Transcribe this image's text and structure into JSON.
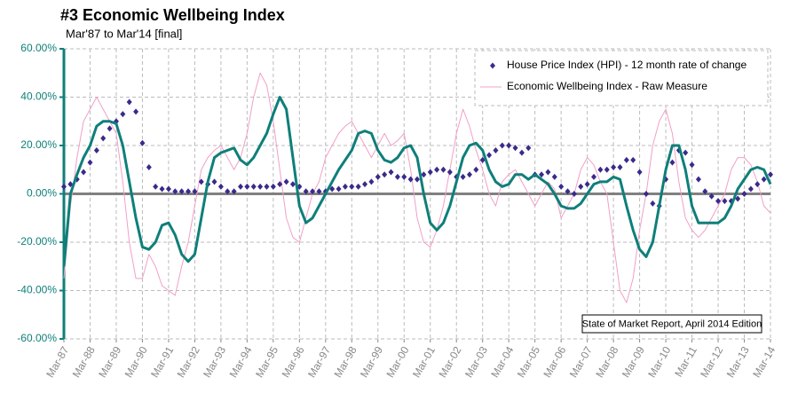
{
  "chart_data": {
    "type": "line",
    "title": "#3 Economic Wellbeing Index",
    "subtitle": "Mar'87 to Mar'14 [final]",
    "annotation": "State of Market Report, April 2014 Edition",
    "categories": [
      "Mar-87",
      null,
      null,
      null,
      "Mar-88",
      null,
      null,
      null,
      "Mar-89",
      null,
      null,
      null,
      "Mar-90",
      null,
      null,
      null,
      "Mar-91",
      null,
      null,
      null,
      "Mar-92",
      null,
      null,
      null,
      "Mar-93",
      null,
      null,
      null,
      "Mar-94",
      null,
      null,
      null,
      "Mar-95",
      null,
      null,
      null,
      "Mar-96",
      null,
      null,
      null,
      "Mar-97",
      null,
      null,
      null,
      "Mar-98",
      null,
      null,
      null,
      "Mar-99",
      null,
      null,
      null,
      "Mar-00",
      null,
      null,
      null,
      "Mar-01",
      null,
      null,
      null,
      "Mar-02",
      null,
      null,
      null,
      "Mar-03",
      null,
      null,
      null,
      "Mar-04",
      null,
      null,
      null,
      "Mar-05",
      null,
      null,
      null,
      "Mar-06",
      null,
      null,
      null,
      "Mar-07",
      null,
      null,
      null,
      "Mar-08",
      null,
      null,
      null,
      "Mar-09",
      null,
      null,
      null,
      "Mar-10",
      null,
      null,
      null,
      "Mar-11",
      null,
      null,
      null,
      "Mar-12",
      null,
      null,
      null,
      "Mar-13",
      null,
      null,
      null,
      "Mar-14"
    ],
    "series": [
      {
        "name": "House Price Index (HPI) - 12 month rate of change",
        "type": "scatter",
        "color": "#3a2a8a",
        "values": [
          3,
          4,
          6,
          9,
          13,
          18,
          23,
          27,
          30,
          33,
          38,
          34,
          21,
          11,
          3,
          2,
          2,
          1,
          1,
          1,
          1,
          5,
          4,
          5,
          3,
          1,
          1,
          3,
          3,
          3,
          3,
          3,
          3,
          4,
          5,
          4,
          3,
          1,
          1,
          1,
          1,
          2,
          2,
          3,
          3,
          3,
          4,
          5,
          7,
          8,
          9,
          7,
          7,
          6,
          6,
          8,
          9,
          10,
          10,
          9,
          7,
          7,
          8,
          10,
          14,
          16,
          18,
          20,
          20,
          19,
          17,
          19,
          8,
          8,
          9,
          7,
          3,
          1,
          0,
          3,
          4,
          7,
          10,
          10,
          11,
          11,
          14,
          14,
          9,
          0,
          -4,
          -5,
          6,
          13,
          18,
          17,
          12,
          6,
          1,
          -1,
          -3,
          -3,
          -3,
          -2,
          0,
          2,
          4,
          6,
          8
        ]
      },
      {
        "name": "Economic Wellbeing Index - Raw Measure",
        "type": "line",
        "line_width": 1,
        "color": "#f0a0c8",
        "values": [
          -35,
          -5,
          15,
          30,
          35,
          40,
          35,
          30,
          25,
          5,
          -20,
          -35,
          -35,
          -25,
          -30,
          -38,
          -40,
          -42,
          -30,
          -20,
          -5,
          10,
          15,
          18,
          20,
          15,
          10,
          15,
          25,
          40,
          50,
          45,
          30,
          10,
          -10,
          -18,
          -20,
          -10,
          0,
          5,
          15,
          20,
          25,
          28,
          30,
          25,
          20,
          15,
          20,
          25,
          20,
          22,
          25,
          10,
          -10,
          -20,
          -22,
          -15,
          -5,
          10,
          25,
          35,
          28,
          18,
          10,
          0,
          -5,
          5,
          8,
          10,
          5,
          0,
          -5,
          0,
          5,
          2,
          -10,
          -5,
          0,
          10,
          15,
          12,
          5,
          0,
          -20,
          -40,
          -45,
          -35,
          -15,
          0,
          20,
          30,
          35,
          25,
          5,
          -10,
          -15,
          -18,
          -15,
          -10,
          -5,
          0,
          10,
          15,
          15,
          12,
          5,
          -5,
          -8
        ]
      },
      {
        "type": "line",
        "line_width": 3,
        "color": "#0e7f7a",
        "values": [
          -30,
          0,
          8,
          15,
          20,
          28,
          30,
          30,
          29,
          20,
          5,
          -10,
          -22,
          -23,
          -20,
          -13,
          -12,
          -17,
          -25,
          -28,
          -25,
          -10,
          5,
          15,
          17,
          18,
          19,
          14,
          12,
          15,
          20,
          25,
          33,
          40,
          35,
          15,
          -5,
          -12,
          -10,
          -5,
          0,
          5,
          10,
          14,
          18,
          25,
          26,
          25,
          18,
          14,
          13,
          15,
          19,
          20,
          15,
          0,
          -12,
          -15,
          -12,
          -5,
          5,
          15,
          20,
          21,
          18,
          10,
          5,
          3,
          4,
          8,
          8,
          6,
          8,
          6,
          4,
          0,
          -5,
          -6,
          -6,
          -4,
          0,
          4,
          5,
          5,
          7,
          6,
          -5,
          -15,
          -23,
          -26,
          -20,
          -5,
          10,
          20,
          20,
          10,
          -5,
          -12,
          -12,
          -12,
          -12,
          -10,
          -5,
          2,
          6,
          10,
          11,
          10,
          4
        ]
      }
    ],
    "ylim": [
      -60,
      60
    ],
    "yticks": [
      {
        "value": -60,
        "label": "-60.00%"
      },
      {
        "value": -40,
        "label": "-40.00%"
      },
      {
        "value": -20,
        "label": "-20.00%"
      },
      {
        "value": 0,
        "label": "0.00%"
      },
      {
        "value": 20,
        "label": "20.00%"
      },
      {
        "value": 40,
        "label": "40.00%"
      },
      {
        "value": 60,
        "label": "60.00%"
      }
    ],
    "grid": true,
    "legend": "top-right"
  }
}
